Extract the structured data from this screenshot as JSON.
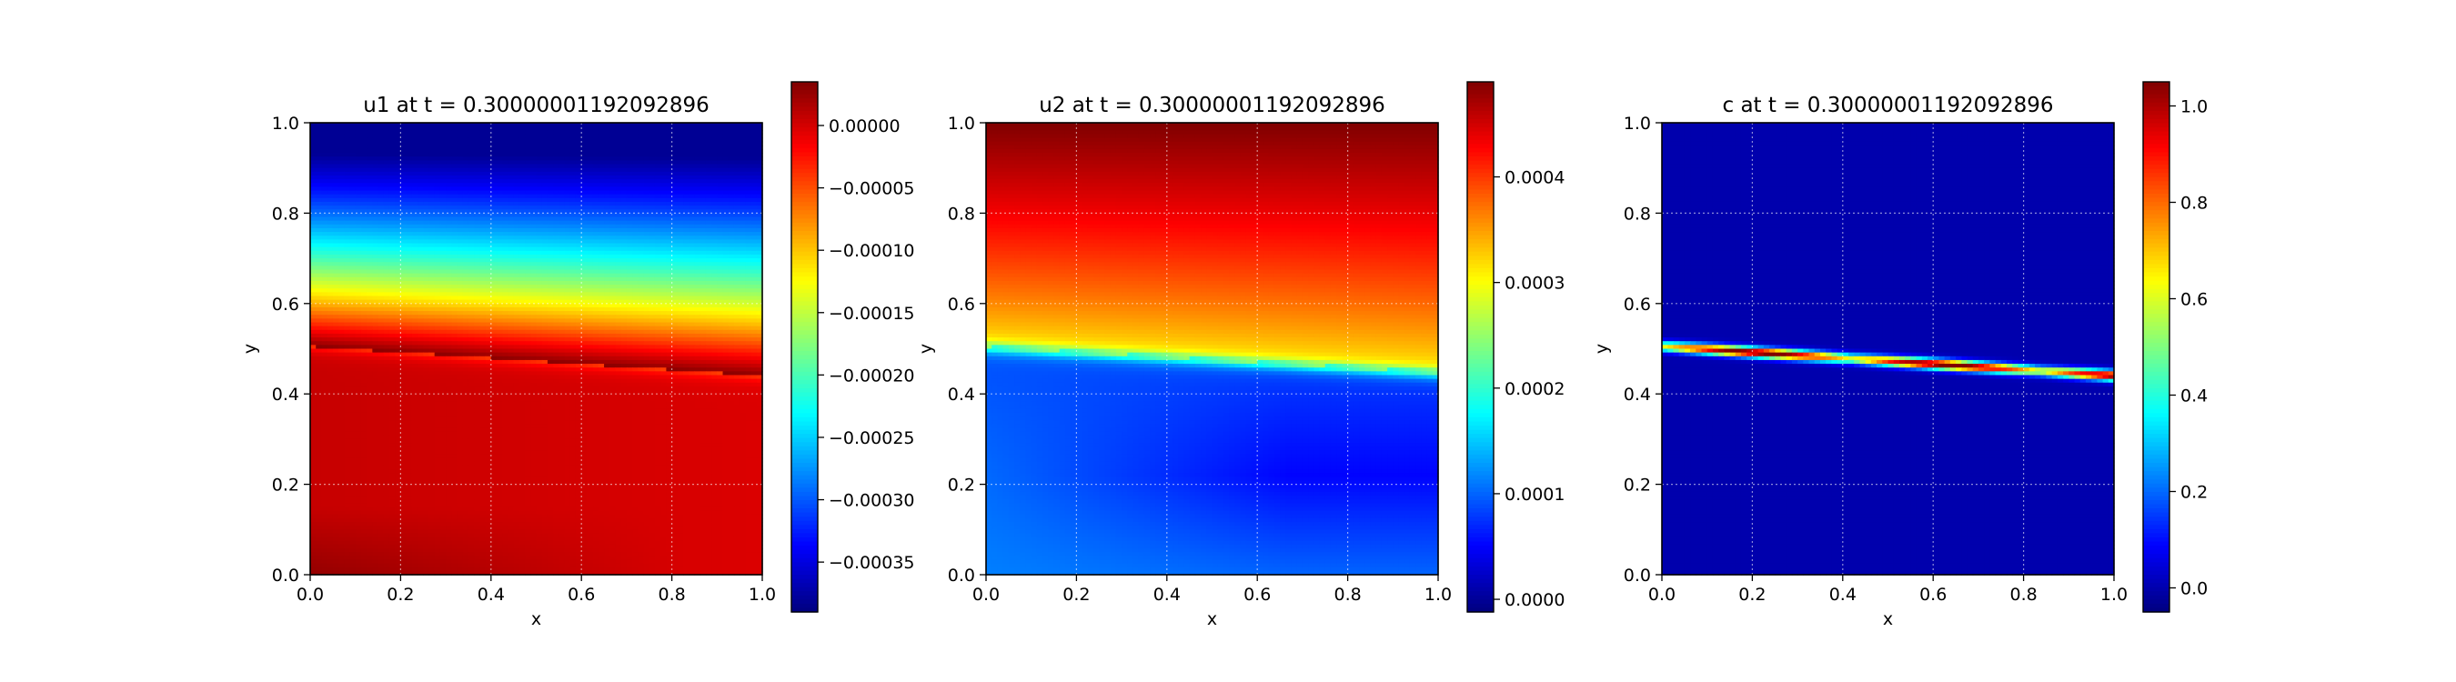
{
  "chart_data": [
    {
      "type": "heatmap",
      "title": "u1 at t = 0.30000001192092896",
      "xlabel": "x",
      "ylabel": "y",
      "xlim": [
        0,
        1
      ],
      "ylim": [
        0,
        1
      ],
      "x_ticks": [
        "0.0",
        "0.2",
        "0.4",
        "0.6",
        "0.8",
        "1.0"
      ],
      "y_ticks": [
        "0.0",
        "0.2",
        "0.4",
        "0.6",
        "0.8",
        "1.0"
      ],
      "grid": true,
      "colormap": "jet",
      "colorbar": {
        "vmin": -0.00039,
        "vmax": 3.5e-05,
        "ticks": [
          {
            "value": 0.0,
            "label": "0.00000"
          },
          {
            "value": -5e-05,
            "label": "−0.00005"
          },
          {
            "value": -0.0001,
            "label": "−0.00010"
          },
          {
            "value": -0.00015,
            "label": "−0.00015"
          },
          {
            "value": -0.0002,
            "label": "−0.00020"
          },
          {
            "value": -0.00025,
            "label": "−0.00025"
          },
          {
            "value": -0.0003,
            "label": "−0.00030"
          },
          {
            "value": -0.00035,
            "label": "−0.00035"
          }
        ]
      },
      "field": "u1"
    },
    {
      "type": "heatmap",
      "title": "u2 at t = 0.30000001192092896",
      "xlabel": "x",
      "ylabel": "y",
      "xlim": [
        0,
        1
      ],
      "ylim": [
        0,
        1
      ],
      "x_ticks": [
        "0.0",
        "0.2",
        "0.4",
        "0.6",
        "0.8",
        "1.0"
      ],
      "y_ticks": [
        "0.0",
        "0.2",
        "0.4",
        "0.6",
        "0.8",
        "1.0"
      ],
      "grid": true,
      "colormap": "jet",
      "colorbar": {
        "vmin": -1.2e-05,
        "vmax": 0.00049,
        "ticks": [
          {
            "value": 0.0,
            "label": "0.0000"
          },
          {
            "value": 0.0001,
            "label": "0.0001"
          },
          {
            "value": 0.0002,
            "label": "0.0002"
          },
          {
            "value": 0.0003,
            "label": "0.0003"
          },
          {
            "value": 0.0004,
            "label": "0.0004"
          }
        ]
      },
      "field": "u2"
    },
    {
      "type": "heatmap",
      "title": "c at t = 0.30000001192092896",
      "xlabel": "x",
      "ylabel": "y",
      "xlim": [
        0,
        1
      ],
      "ylim": [
        0,
        1
      ],
      "x_ticks": [
        "0.0",
        "0.2",
        "0.4",
        "0.6",
        "0.8",
        "1.0"
      ],
      "y_ticks": [
        "0.0",
        "0.2",
        "0.4",
        "0.6",
        "0.8",
        "1.0"
      ],
      "grid": true,
      "colormap": "jet",
      "colorbar": {
        "vmin": -0.05,
        "vmax": 1.05,
        "ticks": [
          {
            "value": 0.0,
            "label": "0.0"
          },
          {
            "value": 0.2,
            "label": "0.2"
          },
          {
            "value": 0.4,
            "label": "0.4"
          },
          {
            "value": 0.6,
            "label": "0.6"
          },
          {
            "value": 0.8,
            "label": "0.8"
          },
          {
            "value": 1.0,
            "label": "1.0"
          }
        ]
      },
      "field": "c"
    }
  ]
}
